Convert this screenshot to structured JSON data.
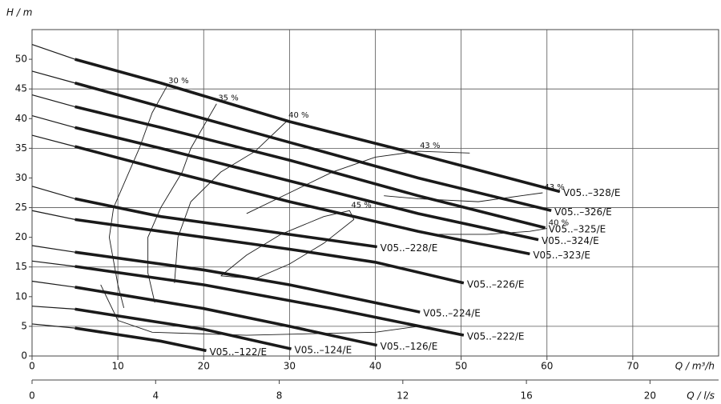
{
  "chart_data": {
    "type": "line",
    "y_label": "H / m",
    "x_label": "Q / m³/h",
    "x2_label": "Q / l/s",
    "xlim": [
      0,
      80
    ],
    "ylim": [
      0,
      55
    ],
    "xticks": [
      0,
      10,
      20,
      30,
      40,
      50,
      60,
      70
    ],
    "yticks": [
      0,
      5,
      10,
      15,
      20,
      25,
      30,
      35,
      40,
      45,
      50
    ],
    "xgrid": [
      10,
      20,
      30,
      40,
      50,
      60,
      70
    ],
    "ygrid": [
      5,
      15,
      25,
      35,
      45
    ],
    "x2lim": [
      0,
      22.22
    ],
    "x2ticks": [
      0,
      4,
      8,
      12,
      16,
      20
    ],
    "color": "#1a1a1a",
    "series": [
      {
        "name": "V05..–328/E",
        "x": [
          0,
          5,
          15,
          30,
          45,
          61.5
        ],
        "values": [
          52.5,
          50,
          46,
          39.5,
          34,
          27.7
        ]
      },
      {
        "name": "V05..–326/E",
        "x": [
          0,
          5,
          15,
          30,
          45,
          60.5
        ],
        "values": [
          48,
          46,
          42,
          36,
          30,
          24.5
        ]
      },
      {
        "name": "V05..–325/E",
        "x": [
          0,
          5,
          15,
          30,
          45,
          59.8
        ],
        "values": [
          44,
          42,
          38.5,
          33,
          27,
          21.6
        ]
      },
      {
        "name": "V05..–324/E",
        "x": [
          0,
          5,
          15,
          30,
          45,
          59
        ],
        "values": [
          40.5,
          38.5,
          35,
          29.5,
          24,
          19.6
        ]
      },
      {
        "name": "V05..–323/E",
        "x": [
          0,
          5,
          15,
          30,
          45,
          58
        ],
        "values": [
          37.2,
          35.3,
          31.5,
          26,
          21,
          17.2
        ]
      },
      {
        "name": "V05..–228/E",
        "x": [
          0,
          5,
          15,
          25,
          40.2
        ],
        "values": [
          28.6,
          26.5,
          23.5,
          21.5,
          18.4
        ]
      },
      {
        "name": "V05..–226/E",
        "x": [
          0,
          5,
          15,
          30,
          40,
          50.3
        ],
        "values": [
          24.5,
          23,
          21,
          18,
          15.8,
          12.3
        ]
      },
      {
        "name": "V05..–224/E",
        "x": [
          0,
          5,
          20,
          30,
          45.2
        ],
        "values": [
          18.6,
          17.5,
          14.5,
          12,
          7.4
        ]
      },
      {
        "name": "V05..–222/E",
        "x": [
          0,
          5,
          20,
          35,
          50.3
        ],
        "values": [
          16,
          15.1,
          12,
          8,
          3.5
        ]
      },
      {
        "name": "V05..–126/E",
        "x": [
          0,
          5,
          20,
          30,
          40.2
        ],
        "values": [
          12.6,
          11.6,
          8,
          5,
          1.8
        ]
      },
      {
        "name": "V05..–124/E",
        "x": [
          0,
          5,
          20,
          30.2
        ],
        "values": [
          8.4,
          7.9,
          4.5,
          1.2
        ]
      },
      {
        "name": "V05..–122/E",
        "x": [
          0,
          5,
          15,
          20.3
        ],
        "values": [
          5.4,
          4.7,
          2.5,
          0.9
        ]
      }
    ],
    "efficiency_curves": [
      {
        "name": "30 %",
        "x": [
          10.7,
          10,
          9,
          9.5,
          11,
          12.5,
          14,
          15.7
        ],
        "values": [
          8.1,
          12,
          20,
          25,
          30,
          35,
          41,
          45.4
        ]
      },
      {
        "name": "35 %",
        "x": [
          14.3,
          13.5,
          13.5,
          15,
          17.5,
          18.5,
          21.5
        ],
        "values": [
          9,
          14,
          20,
          25,
          31,
          35,
          42.5
        ]
      },
      {
        "name": "40 %",
        "x": [
          16.6,
          17,
          18.5,
          22,
          26,
          29.7
        ],
        "values": [
          12.3,
          20,
          26,
          31,
          34.5,
          39.6
        ]
      },
      {
        "name": "43 %",
        "x": [
          25,
          30,
          35,
          40,
          45,
          51
        ],
        "values": [
          24,
          27.5,
          31,
          33.5,
          34.5,
          34.2
        ]
      },
      {
        "name": "43 %",
        "x": [
          41,
          45,
          52,
          57,
          59.5
        ],
        "values": [
          27,
          26.5,
          26,
          27,
          27.5
        ]
      },
      {
        "name": "40 %",
        "x": [
          47,
          53,
          58,
          60
        ],
        "values": [
          20.5,
          20.5,
          21,
          21.5
        ]
      },
      {
        "name": "45 %",
        "x": [
          22,
          25,
          29,
          34,
          37,
          37.5,
          34,
          30,
          26,
          22
        ],
        "values": [
          13.5,
          17,
          20.5,
          23.5,
          24.5,
          23,
          19,
          15.5,
          13,
          13.5
        ]
      },
      {
        "x": [
          8,
          10,
          14,
          25,
          40,
          45
        ],
        "values": [
          12,
          6,
          4,
          3.5,
          4,
          5
        ]
      }
    ]
  }
}
